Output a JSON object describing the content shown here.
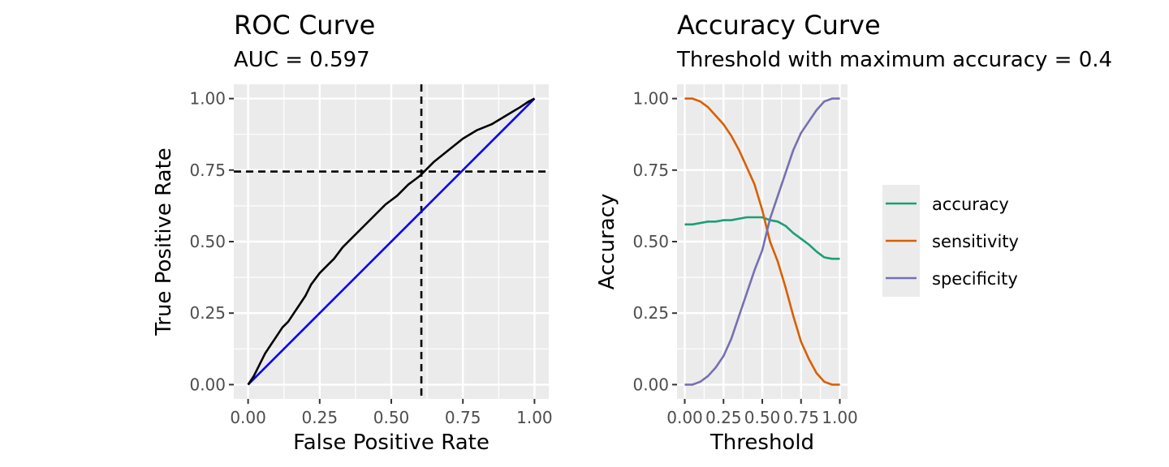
{
  "chart_data": [
    {
      "type": "line",
      "title": "ROC Curve",
      "subtitle": "AUC = 0.597",
      "xlabel": "False Positive Rate",
      "ylabel": "True Positive Rate",
      "xlim": [
        0,
        1
      ],
      "ylim": [
        0,
        1
      ],
      "xticks": [
        "0.00",
        "0.25",
        "0.50",
        "0.75",
        "1.00"
      ],
      "yticks": [
        "0.00",
        "0.25",
        "0.50",
        "0.75",
        "1.00"
      ],
      "grid": true,
      "series": [
        {
          "name": "ROC",
          "color": "#000000",
          "x": [
            0,
            0.02,
            0.04,
            0.06,
            0.08,
            0.1,
            0.12,
            0.14,
            0.16,
            0.18,
            0.2,
            0.22,
            0.25,
            0.28,
            0.3,
            0.33,
            0.36,
            0.4,
            0.44,
            0.48,
            0.52,
            0.56,
            0.6,
            0.62,
            0.65,
            0.7,
            0.75,
            0.8,
            0.85,
            0.9,
            0.95,
            0.98,
            1.0
          ],
          "y": [
            0,
            0.03,
            0.07,
            0.11,
            0.14,
            0.17,
            0.2,
            0.22,
            0.25,
            0.28,
            0.31,
            0.35,
            0.39,
            0.42,
            0.44,
            0.48,
            0.51,
            0.55,
            0.59,
            0.63,
            0.66,
            0.7,
            0.73,
            0.75,
            0.78,
            0.82,
            0.86,
            0.89,
            0.91,
            0.94,
            0.97,
            0.99,
            1.0
          ]
        },
        {
          "name": "Diagonal",
          "color": "#0000ff",
          "x": [
            0,
            1
          ],
          "y": [
            0,
            1
          ]
        }
      ],
      "reference_lines": {
        "vline_x": 0.605,
        "hline_y": 0.745
      }
    },
    {
      "type": "line",
      "title": "Accuracy Curve",
      "subtitle": "Threshold with maximum accuracy = 0.4",
      "xlabel": "Threshold",
      "ylabel": "Accuracy",
      "xlim": [
        0,
        1
      ],
      "ylim": [
        0,
        1
      ],
      "xticks": [
        "0.00",
        "0.25",
        "0.50",
        "0.75",
        "1.00"
      ],
      "yticks": [
        "0.00",
        "0.25",
        "0.50",
        "0.75",
        "1.00"
      ],
      "grid": true,
      "legend_position": "right",
      "x": [
        0,
        0.05,
        0.1,
        0.15,
        0.2,
        0.25,
        0.3,
        0.35,
        0.4,
        0.45,
        0.5,
        0.55,
        0.6,
        0.65,
        0.7,
        0.75,
        0.8,
        0.85,
        0.9,
        0.95,
        1.0
      ],
      "series": [
        {
          "name": "accuracy",
          "color": "#1b9e77",
          "values": [
            0.56,
            0.56,
            0.565,
            0.57,
            0.57,
            0.575,
            0.575,
            0.58,
            0.585,
            0.585,
            0.585,
            0.575,
            0.57,
            0.555,
            0.53,
            0.51,
            0.49,
            0.465,
            0.445,
            0.44,
            0.44
          ]
        },
        {
          "name": "sensitivity",
          "color": "#d95f02",
          "values": [
            1.0,
            1.0,
            0.99,
            0.97,
            0.94,
            0.91,
            0.87,
            0.82,
            0.76,
            0.7,
            0.61,
            0.5,
            0.43,
            0.34,
            0.24,
            0.15,
            0.09,
            0.04,
            0.01,
            0.0,
            0.0
          ]
        },
        {
          "name": "specificity",
          "color": "#7570b3",
          "values": [
            0.0,
            0.0,
            0.01,
            0.03,
            0.06,
            0.1,
            0.16,
            0.24,
            0.32,
            0.4,
            0.47,
            0.58,
            0.66,
            0.74,
            0.82,
            0.88,
            0.92,
            0.96,
            0.99,
            1.0,
            1.0
          ]
        }
      ]
    }
  ]
}
